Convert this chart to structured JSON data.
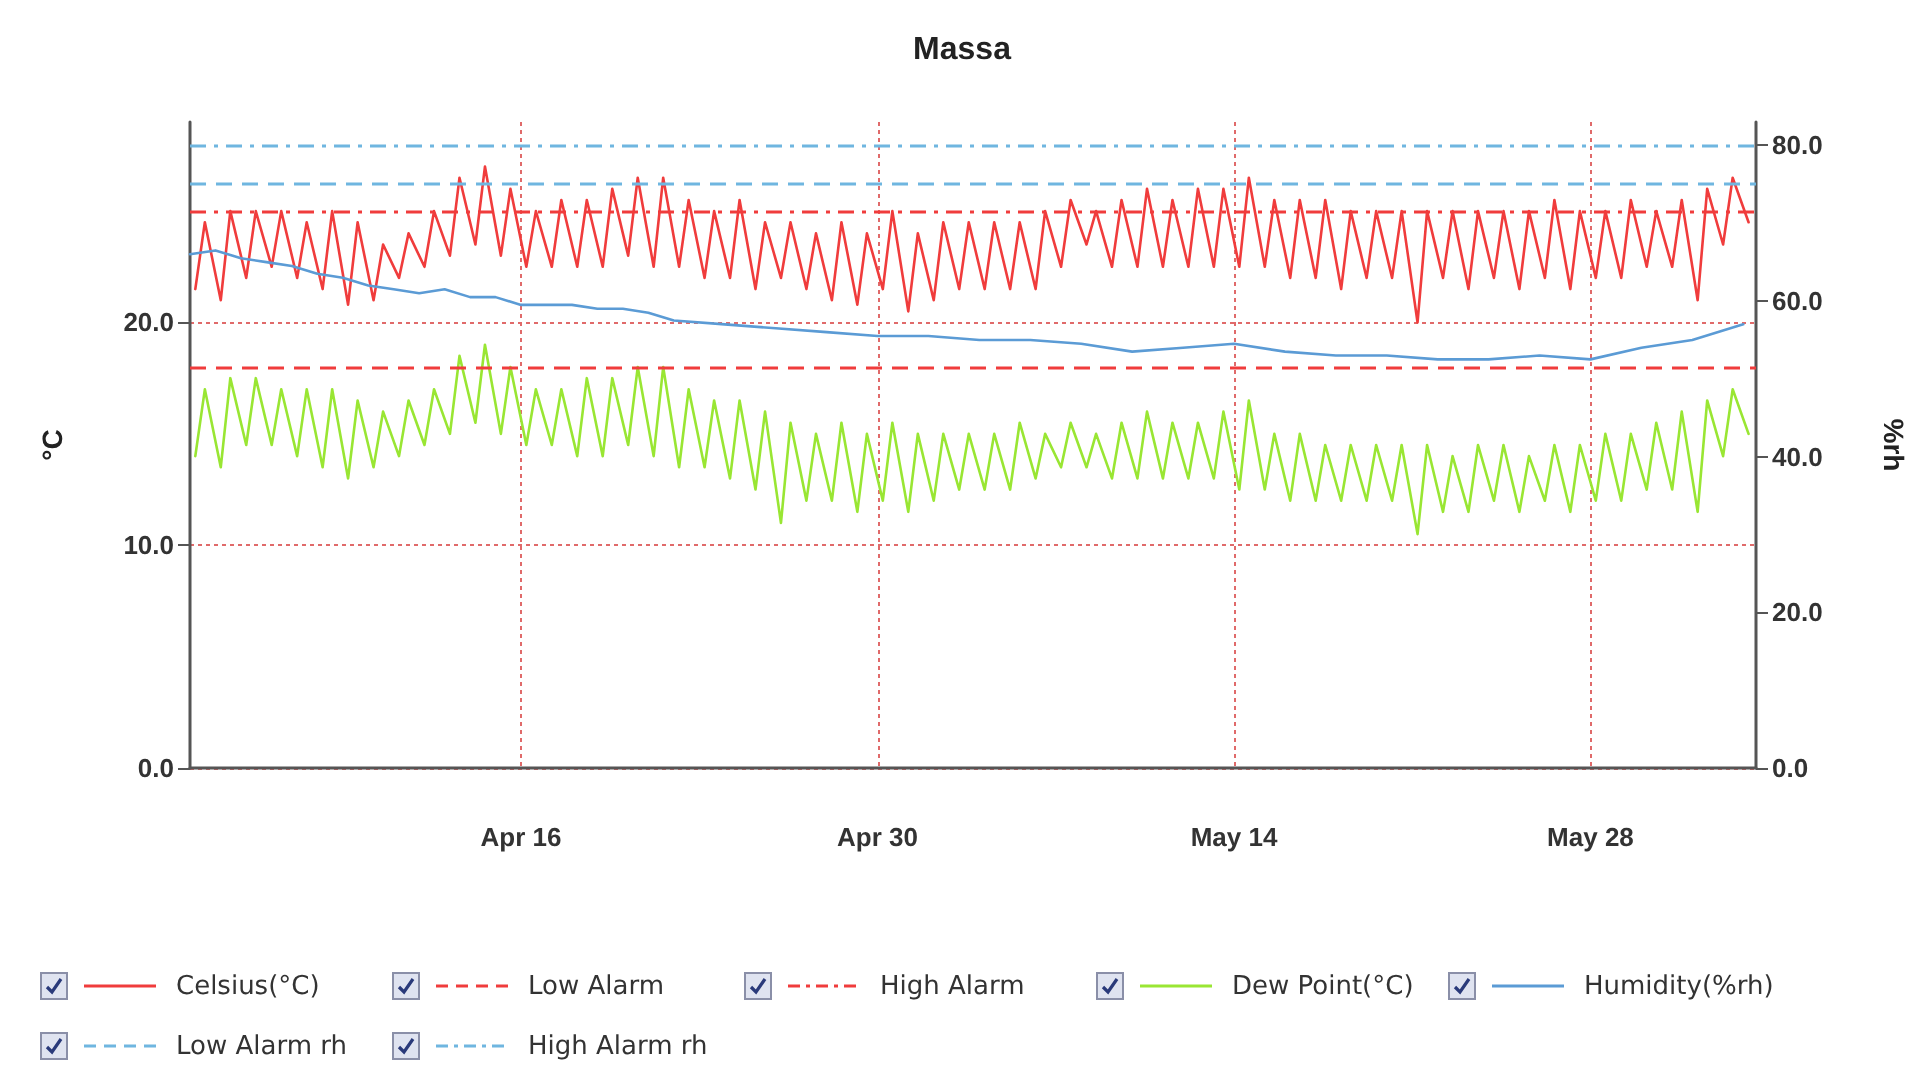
{
  "chart_data": {
    "type": "line",
    "title": "Massa",
    "ylabel": "°C",
    "y2label": "%rh",
    "x": [
      "--04-03T05:00",
      "--04-03T14:00",
      "--04-04T05:00",
      "--04-04T14:00",
      "--04-05T05:00",
      "--04-05T14:00",
      "--04-06T05:00",
      "--04-06T14:00",
      "--04-07T05:00",
      "--04-07T14:00",
      "--04-08T05:00",
      "--04-08T14:00",
      "--04-09T05:00",
      "--04-09T14:00",
      "--04-10T05:00",
      "--04-10T14:00",
      "--04-11T05:00",
      "--04-11T14:00",
      "--04-12T05:00",
      "--04-12T14:00",
      "--04-13T05:00",
      "--04-13T14:00",
      "--04-14T05:00",
      "--04-14T14:00",
      "--04-15T05:00",
      "--04-15T14:00",
      "--04-16T05:00",
      "--04-16T14:00",
      "--04-17T05:00",
      "--04-17T14:00",
      "--04-18T05:00",
      "--04-18T14:00",
      "--04-19T05:00",
      "--04-19T14:00",
      "--04-20T05:00",
      "--04-20T14:00",
      "--04-21T05:00",
      "--04-21T14:00",
      "--04-22T05:00",
      "--04-22T14:00",
      "--04-23T05:00",
      "--04-23T14:00",
      "--04-24T05:00",
      "--04-24T14:00",
      "--04-25T05:00",
      "--04-25T14:00",
      "--04-26T05:00",
      "--04-26T14:00",
      "--04-27T05:00",
      "--04-27T14:00",
      "--04-28T05:00",
      "--04-28T14:00",
      "--04-29T05:00",
      "--04-29T14:00",
      "--04-30T05:00",
      "--04-30T14:00",
      "--05-01T05:00",
      "--05-01T14:00",
      "--05-02T05:00",
      "--05-02T14:00",
      "--05-03T05:00",
      "--05-03T14:00",
      "--05-04T05:00",
      "--05-04T14:00",
      "--05-05T05:00",
      "--05-05T14:00",
      "--05-06T05:00",
      "--05-06T14:00",
      "--05-07T05:00",
      "--05-07T14:00",
      "--05-08T05:00",
      "--05-08T14:00",
      "--05-09T05:00",
      "--05-09T14:00",
      "--05-10T05:00",
      "--05-10T14:00",
      "--05-11T05:00",
      "--05-11T14:00",
      "--05-12T05:00",
      "--05-12T14:00",
      "--05-13T05:00",
      "--05-13T14:00",
      "--05-14T05:00",
      "--05-14T14:00",
      "--05-15T05:00",
      "--05-15T14:00",
      "--05-16T05:00",
      "--05-16T14:00",
      "--05-17T05:00",
      "--05-17T14:00",
      "--05-18T05:00",
      "--05-18T14:00",
      "--05-19T05:00",
      "--05-19T14:00",
      "--05-20T05:00",
      "--05-20T14:00",
      "--05-21T05:00",
      "--05-21T14:00",
      "--05-22T05:00",
      "--05-22T14:00",
      "--05-23T05:00",
      "--05-23T14:00",
      "--05-24T05:00",
      "--05-24T14:00",
      "--05-25T05:00",
      "--05-25T14:00",
      "--05-26T05:00",
      "--05-26T14:00",
      "--05-27T05:00",
      "--05-27T14:00",
      "--05-28T05:00",
      "--05-28T14:00",
      "--05-29T05:00",
      "--05-29T14:00",
      "--05-30T05:00",
      "--05-30T14:00",
      "--05-31T05:00",
      "--05-31T14:00",
      "--06-01T05:00",
      "--06-01T14:00",
      "--06-02T05:00",
      "--06-02T14:00",
      "--06-03T05:00"
    ],
    "series": [
      {
        "name": "Celsius(°C)",
        "color": "#f03c3c",
        "values": [
          21.5,
          24.5,
          21,
          25,
          22,
          25,
          22.5,
          25,
          22,
          24.5,
          21.5,
          25,
          20.8,
          24.5,
          21,
          23.5,
          22,
          24,
          22.5,
          25,
          23,
          26.5,
          23.5,
          27,
          23,
          26,
          22.5,
          25,
          22.5,
          25.5,
          22.5,
          25.5,
          22.5,
          26,
          23,
          26.5,
          22.5,
          26.5,
          22.5,
          25.5,
          22,
          25,
          22,
          25.5,
          21.5,
          24.5,
          22,
          24.5,
          21.5,
          24,
          21,
          24.5,
          20.8,
          24,
          21.5,
          25,
          20.5,
          24,
          21,
          24.5,
          21.5,
          24.5,
          21.5,
          24.5,
          21.5,
          24.5,
          21.5,
          25,
          22.5,
          25.5,
          23.5,
          25,
          22.5,
          25.5,
          22.5,
          26,
          22.5,
          25.5,
          22.5,
          26,
          22.5,
          26,
          22.5,
          26.5,
          22.5,
          25.5,
          22,
          25.5,
          22,
          25.5,
          21.5,
          25,
          22,
          25,
          22,
          25,
          20,
          25,
          22,
          25,
          21.5,
          25,
          22,
          25,
          21.5,
          25,
          22,
          25.5,
          21.5,
          25,
          22,
          25,
          22,
          25.5,
          22.5,
          25,
          22.5,
          25.5,
          21,
          26,
          23.5,
          26.5,
          24.5
        ]
      },
      {
        "name": "Dew Point(°C)",
        "color": "#99e633",
        "values": [
          14,
          17,
          13.5,
          17.5,
          14.5,
          17.5,
          14.5,
          17,
          14,
          17,
          13.5,
          17,
          13,
          16.5,
          13.5,
          16,
          14,
          16.5,
          14.5,
          17,
          15,
          18.5,
          15.5,
          19,
          15,
          18,
          14.5,
          17,
          14.5,
          17,
          14,
          17.5,
          14,
          17.5,
          14.5,
          18,
          14,
          18,
          13.5,
          17,
          13.5,
          16.5,
          13,
          16.5,
          12.5,
          16,
          11,
          15.5,
          12,
          15,
          12,
          15.5,
          11.5,
          15,
          12,
          15.5,
          11.5,
          15,
          12,
          15,
          12.5,
          15,
          12.5,
          15,
          12.5,
          15.5,
          13,
          15,
          13.5,
          15.5,
          13.5,
          15,
          13,
          15.5,
          13,
          16,
          13,
          15.5,
          13,
          15.5,
          13,
          16,
          12.5,
          16.5,
          12.5,
          15,
          12,
          15,
          12,
          14.5,
          12,
          14.5,
          12,
          14.5,
          12,
          14.5,
          10.5,
          14.5,
          11.5,
          14,
          11.5,
          14.5,
          12,
          14.5,
          11.5,
          14,
          12,
          14.5,
          11.5,
          14.5,
          12,
          15,
          12,
          15,
          12.5,
          15.5,
          12.5,
          16,
          11.5,
          16.5,
          14,
          17,
          15
        ]
      },
      {
        "name": "Humidity(%rh)",
        "color": "#5b9bd5",
        "axis": "y2",
        "x": [
          "--04-03",
          "--04-04",
          "--04-05",
          "--04-06",
          "--04-07",
          "--04-08",
          "--04-09",
          "--04-10",
          "--04-11",
          "--04-12",
          "--04-13",
          "--04-14",
          "--04-15",
          "--04-16",
          "--04-18",
          "--04-19",
          "--04-20",
          "--04-21",
          "--04-22",
          "--04-24",
          "--04-26",
          "--04-28",
          "--04-30",
          "--05-02",
          "--05-04",
          "--05-06",
          "--05-08",
          "--05-10",
          "--05-12",
          "--05-14",
          "--05-16",
          "--05-18",
          "--05-20",
          "--05-22",
          "--05-24",
          "--05-26",
          "--05-28",
          "--05-30",
          "--06-01",
          "--06-03"
        ],
        "values": [
          66,
          66.5,
          65.5,
          65,
          64.5,
          63.5,
          63,
          62,
          61.5,
          61,
          61.5,
          60.5,
          60.5,
          59.5,
          59.5,
          59,
          59,
          58.5,
          57.5,
          57,
          56.5,
          56,
          55.5,
          55.5,
          55,
          55,
          54.5,
          53.5,
          54,
          54.5,
          53.5,
          53,
          53,
          52.5,
          52.5,
          53,
          52.5,
          54,
          55,
          57
        ]
      }
    ],
    "ref_lines": [
      {
        "axis": "y",
        "value": 18,
        "label": "Low Alarm",
        "color": "#f03c3c",
        "line_style": "dashed"
      },
      {
        "axis": "y",
        "value": 25,
        "label": "High Alarm",
        "color": "#f03c3c",
        "line_style": "dashdot"
      },
      {
        "axis": "y2",
        "value": 75,
        "label": "Low Alarm rh",
        "color": "#6fb6e0",
        "line_style": "dashed"
      },
      {
        "axis": "y2",
        "value": 80,
        "label": "High Alarm rh",
        "color": "#6fb6e0",
        "line_style": "dashdot"
      }
    ],
    "xlim": [
      "--04-03",
      "--06-03T12:00"
    ],
    "xticks": [
      {
        "value": "--04-16",
        "label": "Apr 16"
      },
      {
        "value": "--04-30",
        "label": "Apr 30"
      },
      {
        "value": "--05-14",
        "label": "May 14"
      },
      {
        "value": "--05-28",
        "label": "May 28"
      }
    ],
    "ylim": [
      0,
      29
    ],
    "yticks": [
      {
        "value": 0,
        "label": "0.0"
      },
      {
        "value": 10,
        "label": "10.0"
      },
      {
        "value": 20,
        "label": "20.0"
      }
    ],
    "y2lim": [
      0,
      83
    ],
    "y2ticks": [
      {
        "value": 0,
        "label": "0.0"
      },
      {
        "value": 20,
        "label": "20.0"
      },
      {
        "value": 40,
        "label": "40.0"
      },
      {
        "value": 60,
        "label": "60.0"
      },
      {
        "value": 80,
        "label": "80.0"
      }
    ],
    "grid": true,
    "legend": "bottom",
    "marker": "none",
    "line_style": "solid"
  }
}
